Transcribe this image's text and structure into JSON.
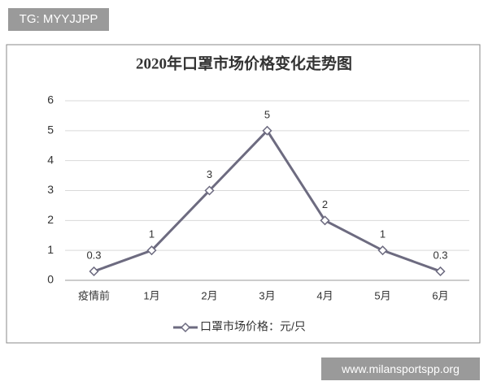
{
  "overlay": {
    "badge": "TG: MYYJJPP",
    "watermark": "www.milansportspp.org"
  },
  "chart_data": {
    "type": "line",
    "title": "2020年口罩市场价格变化走势图",
    "categories": [
      "疫情前",
      "1月",
      "2月",
      "3月",
      "4月",
      "5月",
      "6月"
    ],
    "series": [
      {
        "name": "口罩市场价格：元/只",
        "color": "#6d6b80",
        "values": [
          0.3,
          1,
          3,
          5,
          2,
          1,
          0.3
        ]
      }
    ],
    "ylim": [
      0,
      6
    ],
    "yticks": [
      0,
      1,
      2,
      3,
      4,
      5,
      6
    ],
    "grid": true,
    "data_labels": true,
    "legend": "bottom"
  }
}
